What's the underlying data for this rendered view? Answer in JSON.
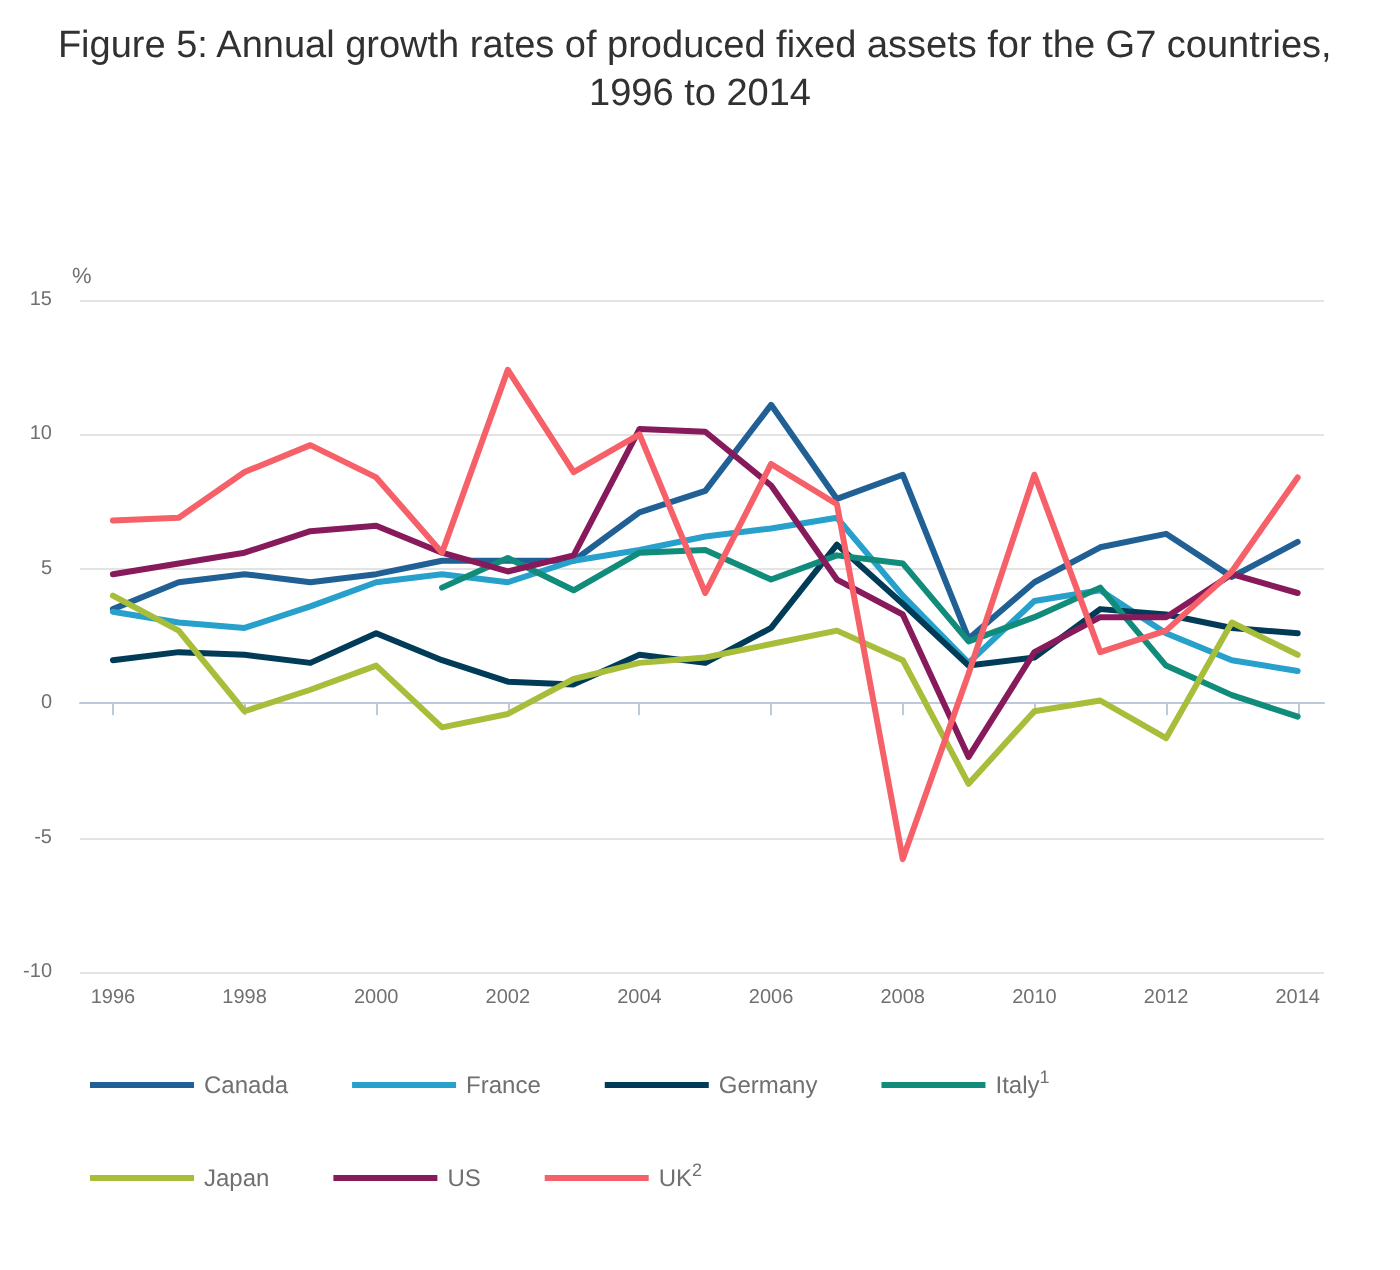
{
  "chart_data": {
    "type": "line",
    "title": "Figure 5: Annual growth rates of produced fixed assets for the G7 countries, 1996 to 2014",
    "ylabel": "%",
    "x": [
      1996,
      1997,
      1998,
      1999,
      2000,
      2001,
      2002,
      2003,
      2004,
      2005,
      2006,
      2007,
      2008,
      2009,
      2010,
      2011,
      2012,
      2013,
      2014
    ],
    "series": [
      {
        "name": "Canada",
        "color": "#206095",
        "values": [
          3.5,
          4.5,
          4.8,
          4.5,
          4.8,
          5.3,
          5.3,
          5.3,
          7.1,
          7.9,
          11.1,
          7.6,
          8.5,
          2.4,
          4.5,
          5.8,
          6.3,
          4.7,
          6.0
        ]
      },
      {
        "name": "France",
        "color": "#27a0cc",
        "values": [
          3.4,
          3.0,
          2.8,
          3.6,
          4.5,
          4.8,
          4.5,
          5.3,
          5.7,
          6.2,
          6.5,
          6.9,
          4.0,
          1.5,
          3.8,
          4.2,
          2.6,
          1.6,
          1.2
        ]
      },
      {
        "name": "Germany",
        "color": "#003c57",
        "values": [
          1.6,
          1.9,
          1.8,
          1.5,
          2.6,
          1.6,
          0.8,
          0.7,
          1.8,
          1.5,
          2.8,
          5.9,
          3.7,
          1.4,
          1.7,
          3.5,
          3.3,
          2.8,
          2.6
        ]
      },
      {
        "name": "Italy$^{1}$",
        "color": "#118c7b",
        "values": [
          null,
          null,
          null,
          null,
          null,
          4.3,
          5.4,
          4.2,
          5.6,
          5.7,
          4.6,
          5.5,
          5.2,
          2.3,
          3.2,
          4.3,
          1.4,
          0.3,
          -0.5
        ]
      },
      {
        "name": "Japan",
        "color": "#a8bd3a",
        "values": [
          4.0,
          2.7,
          -0.3,
          0.5,
          1.4,
          -0.9,
          -0.4,
          0.9,
          1.5,
          1.7,
          2.2,
          2.7,
          1.6,
          -3.0,
          -0.3,
          0.1,
          -1.3,
          3.0,
          1.8
        ]
      },
      {
        "name": "US",
        "color": "#871a5b",
        "values": [
          4.8,
          5.2,
          5.6,
          6.4,
          6.6,
          5.6,
          4.9,
          5.5,
          10.2,
          10.1,
          8.1,
          4.6,
          3.3,
          -2.0,
          1.9,
          3.2,
          3.2,
          4.8,
          4.1
        ]
      },
      {
        "name": "UK$^{2}$",
        "color": "#f66068",
        "values": [
          6.8,
          6.9,
          8.6,
          9.6,
          8.4,
          5.6,
          12.4,
          8.6,
          10.0,
          4.1,
          8.9,
          7.4,
          -5.8,
          1.1,
          8.5,
          1.9,
          2.7,
          4.9,
          8.4
        ]
      }
    ],
    "xlim": [
      1995.5,
      2014.4
    ],
    "xticks": [
      1996,
      1998,
      2000,
      2002,
      2004,
      2006,
      2008,
      2010,
      2012,
      2014
    ],
    "ylim": [
      -10,
      15
    ],
    "yticks": [
      -10,
      -5,
      0,
      5,
      10,
      15
    ],
    "grid": "y",
    "legend": "bottom",
    "marker": "none",
    "line_style": "solid"
  }
}
